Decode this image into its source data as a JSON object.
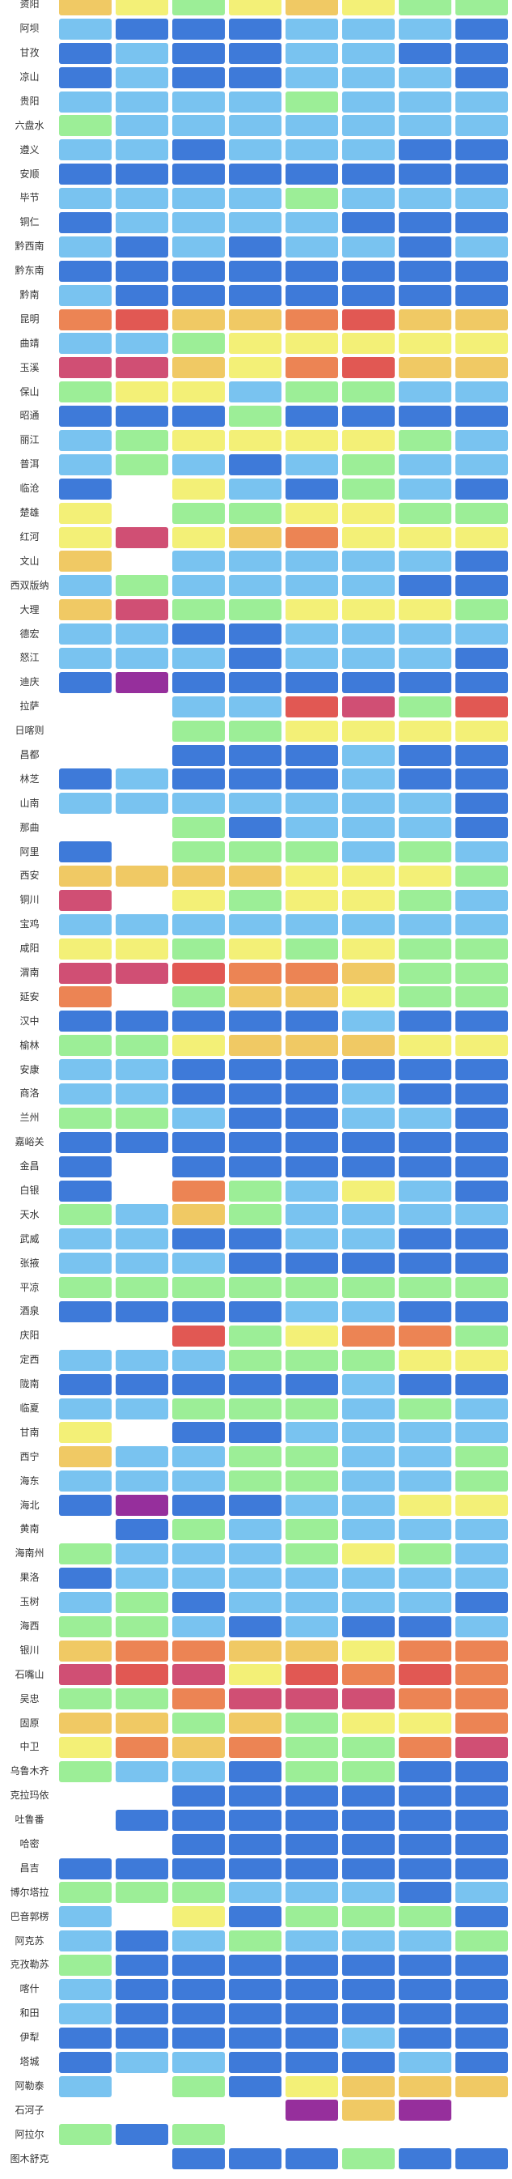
{
  "chart_data": {
    "type": "heatmap",
    "columns": 8,
    "column_labels_visible": false,
    "palette": {
      "b": "#3e7ad9",
      "l": "#79c3f0",
      "g": "#9cee97",
      "y": "#f3f077",
      "o": "#f0c964",
      "r": "#ec8454",
      "R": "#e15853",
      "c": "#d04f74",
      "p": "#962f9c",
      "w": "transparent"
    },
    "palette_legend": {
      "b": "blue",
      "l": "light-blue",
      "g": "green",
      "y": "yellow",
      "o": "gold",
      "r": "orange",
      "R": "red",
      "c": "crimson",
      "p": "purple",
      "w": "no-data"
    },
    "rows": [
      {
        "label": "资阳",
        "cells": [
          "o",
          "y",
          "g",
          "y",
          "o",
          "y",
          "g",
          "g"
        ]
      },
      {
        "label": "阿坝",
        "cells": [
          "l",
          "b",
          "b",
          "b",
          "l",
          "l",
          "l",
          "b"
        ]
      },
      {
        "label": "甘孜",
        "cells": [
          "b",
          "l",
          "b",
          "b",
          "l",
          "l",
          "b",
          "b"
        ]
      },
      {
        "label": "凉山",
        "cells": [
          "b",
          "l",
          "b",
          "b",
          "l",
          "l",
          "l",
          "b"
        ]
      },
      {
        "label": "贵阳",
        "cells": [
          "l",
          "l",
          "l",
          "l",
          "g",
          "l",
          "l",
          "l"
        ]
      },
      {
        "label": "六盘水",
        "cells": [
          "g",
          "l",
          "l",
          "l",
          "l",
          "l",
          "l",
          "l"
        ]
      },
      {
        "label": "遵义",
        "cells": [
          "l",
          "l",
          "b",
          "l",
          "l",
          "l",
          "b",
          "b"
        ]
      },
      {
        "label": "安顺",
        "cells": [
          "b",
          "b",
          "b",
          "b",
          "b",
          "b",
          "b",
          "b"
        ]
      },
      {
        "label": "毕节",
        "cells": [
          "l",
          "l",
          "l",
          "l",
          "g",
          "l",
          "l",
          "l"
        ]
      },
      {
        "label": "铜仁",
        "cells": [
          "b",
          "l",
          "l",
          "l",
          "l",
          "b",
          "b",
          "b"
        ]
      },
      {
        "label": "黔西南",
        "cells": [
          "l",
          "b",
          "l",
          "b",
          "l",
          "l",
          "b",
          "l"
        ]
      },
      {
        "label": "黔东南",
        "cells": [
          "b",
          "b",
          "b",
          "b",
          "b",
          "b",
          "b",
          "b"
        ]
      },
      {
        "label": "黔南",
        "cells": [
          "l",
          "b",
          "b",
          "b",
          "b",
          "b",
          "b",
          "b"
        ]
      },
      {
        "label": "昆明",
        "cells": [
          "r",
          "R",
          "o",
          "o",
          "r",
          "R",
          "o",
          "o"
        ]
      },
      {
        "label": "曲靖",
        "cells": [
          "l",
          "l",
          "g",
          "y",
          "y",
          "y",
          "y",
          "y"
        ]
      },
      {
        "label": "玉溪",
        "cells": [
          "c",
          "c",
          "o",
          "y",
          "r",
          "R",
          "o",
          "o"
        ]
      },
      {
        "label": "保山",
        "cells": [
          "g",
          "y",
          "y",
          "l",
          "g",
          "g",
          "l",
          "l"
        ]
      },
      {
        "label": "昭通",
        "cells": [
          "b",
          "b",
          "b",
          "g",
          "b",
          "b",
          "b",
          "b"
        ]
      },
      {
        "label": "丽江",
        "cells": [
          "l",
          "g",
          "y",
          "y",
          "y",
          "y",
          "g",
          "l"
        ]
      },
      {
        "label": "普洱",
        "cells": [
          "l",
          "g",
          "l",
          "b",
          "l",
          "g",
          "l",
          "l"
        ]
      },
      {
        "label": "临沧",
        "cells": [
          "b",
          "w",
          "y",
          "l",
          "b",
          "g",
          "l",
          "b"
        ]
      },
      {
        "label": "楚雄",
        "cells": [
          "y",
          "w",
          "g",
          "g",
          "y",
          "y",
          "g",
          "g"
        ]
      },
      {
        "label": "红河",
        "cells": [
          "y",
          "c",
          "y",
          "o",
          "r",
          "y",
          "y",
          "y"
        ]
      },
      {
        "label": "文山",
        "cells": [
          "o",
          "w",
          "l",
          "l",
          "l",
          "l",
          "l",
          "b"
        ]
      },
      {
        "label": "西双版纳",
        "cells": [
          "l",
          "g",
          "l",
          "l",
          "l",
          "l",
          "b",
          "b"
        ]
      },
      {
        "label": "大理",
        "cells": [
          "o",
          "c",
          "g",
          "g",
          "y",
          "y",
          "y",
          "g"
        ]
      },
      {
        "label": "德宏",
        "cells": [
          "l",
          "l",
          "b",
          "b",
          "l",
          "l",
          "l",
          "l"
        ]
      },
      {
        "label": "怒江",
        "cells": [
          "l",
          "l",
          "l",
          "b",
          "l",
          "l",
          "l",
          "b"
        ]
      },
      {
        "label": "迪庆",
        "cells": [
          "b",
          "p",
          "b",
          "b",
          "b",
          "b",
          "b",
          "b"
        ]
      },
      {
        "label": "拉萨",
        "cells": [
          "w",
          "w",
          "l",
          "l",
          "R",
          "c",
          "g",
          "R"
        ]
      },
      {
        "label": "日喀则",
        "cells": [
          "w",
          "w",
          "g",
          "g",
          "y",
          "y",
          "y",
          "y"
        ]
      },
      {
        "label": "昌都",
        "cells": [
          "w",
          "w",
          "b",
          "b",
          "b",
          "l",
          "b",
          "b"
        ]
      },
      {
        "label": "林芝",
        "cells": [
          "b",
          "l",
          "b",
          "b",
          "b",
          "l",
          "b",
          "b"
        ]
      },
      {
        "label": "山南",
        "cells": [
          "l",
          "l",
          "l",
          "l",
          "l",
          "l",
          "l",
          "b"
        ]
      },
      {
        "label": "那曲",
        "cells": [
          "w",
          "w",
          "g",
          "b",
          "l",
          "l",
          "l",
          "b"
        ]
      },
      {
        "label": "阿里",
        "cells": [
          "b",
          "w",
          "g",
          "g",
          "g",
          "l",
          "g",
          "l"
        ]
      },
      {
        "label": "西安",
        "cells": [
          "o",
          "o",
          "o",
          "o",
          "y",
          "y",
          "y",
          "g"
        ]
      },
      {
        "label": "铜川",
        "cells": [
          "c",
          "w",
          "y",
          "g",
          "y",
          "y",
          "g",
          "l"
        ]
      },
      {
        "label": "宝鸡",
        "cells": [
          "l",
          "l",
          "l",
          "l",
          "l",
          "l",
          "l",
          "l"
        ]
      },
      {
        "label": "咸阳",
        "cells": [
          "y",
          "y",
          "g",
          "y",
          "g",
          "y",
          "g",
          "g"
        ]
      },
      {
        "label": "渭南",
        "cells": [
          "c",
          "c",
          "R",
          "r",
          "r",
          "o",
          "g",
          "g"
        ]
      },
      {
        "label": "延安",
        "cells": [
          "r",
          "w",
          "g",
          "o",
          "o",
          "y",
          "g",
          "g"
        ]
      },
      {
        "label": "汉中",
        "cells": [
          "b",
          "b",
          "b",
          "b",
          "b",
          "l",
          "b",
          "b"
        ]
      },
      {
        "label": "榆林",
        "cells": [
          "g",
          "g",
          "y",
          "o",
          "o",
          "o",
          "y",
          "y"
        ]
      },
      {
        "label": "安康",
        "cells": [
          "l",
          "l",
          "b",
          "b",
          "b",
          "b",
          "b",
          "b"
        ]
      },
      {
        "label": "商洛",
        "cells": [
          "l",
          "l",
          "b",
          "b",
          "b",
          "l",
          "b",
          "b"
        ]
      },
      {
        "label": "兰州",
        "cells": [
          "g",
          "g",
          "l",
          "b",
          "b",
          "l",
          "l",
          "b"
        ]
      },
      {
        "label": "嘉峪关",
        "cells": [
          "b",
          "b",
          "b",
          "b",
          "b",
          "b",
          "b",
          "b"
        ]
      },
      {
        "label": "金昌",
        "cells": [
          "b",
          "w",
          "b",
          "b",
          "b",
          "b",
          "b",
          "b"
        ]
      },
      {
        "label": "白银",
        "cells": [
          "b",
          "w",
          "r",
          "g",
          "l",
          "y",
          "l",
          "b"
        ]
      },
      {
        "label": "天水",
        "cells": [
          "g",
          "l",
          "o",
          "g",
          "l",
          "l",
          "l",
          "l"
        ]
      },
      {
        "label": "武威",
        "cells": [
          "l",
          "l",
          "b",
          "b",
          "l",
          "l",
          "b",
          "b"
        ]
      },
      {
        "label": "张掖",
        "cells": [
          "l",
          "l",
          "l",
          "b",
          "b",
          "b",
          "b",
          "b"
        ]
      },
      {
        "label": "平凉",
        "cells": [
          "g",
          "g",
          "g",
          "g",
          "g",
          "g",
          "g",
          "g"
        ]
      },
      {
        "label": "酒泉",
        "cells": [
          "b",
          "b",
          "b",
          "b",
          "l",
          "l",
          "b",
          "b"
        ]
      },
      {
        "label": "庆阳",
        "cells": [
          "w",
          "w",
          "R",
          "g",
          "y",
          "r",
          "r",
          "g"
        ]
      },
      {
        "label": "定西",
        "cells": [
          "l",
          "l",
          "l",
          "g",
          "g",
          "g",
          "y",
          "y"
        ]
      },
      {
        "label": "陇南",
        "cells": [
          "b",
          "b",
          "b",
          "b",
          "b",
          "l",
          "b",
          "b"
        ]
      },
      {
        "label": "临夏",
        "cells": [
          "l",
          "l",
          "g",
          "g",
          "g",
          "l",
          "g",
          "l"
        ]
      },
      {
        "label": "甘南",
        "cells": [
          "y",
          "w",
          "b",
          "b",
          "l",
          "l",
          "l",
          "l"
        ]
      },
      {
        "label": "西宁",
        "cells": [
          "o",
          "l",
          "l",
          "g",
          "g",
          "l",
          "l",
          "g"
        ]
      },
      {
        "label": "海东",
        "cells": [
          "l",
          "l",
          "l",
          "g",
          "g",
          "l",
          "l",
          "g"
        ]
      },
      {
        "label": "海北",
        "cells": [
          "b",
          "p",
          "b",
          "b",
          "l",
          "l",
          "y",
          "y"
        ]
      },
      {
        "label": "黄南",
        "cells": [
          "w",
          "b",
          "g",
          "l",
          "g",
          "l",
          "l",
          "l"
        ]
      },
      {
        "label": "海南州",
        "cells": [
          "g",
          "l",
          "l",
          "l",
          "g",
          "y",
          "g",
          "l"
        ]
      },
      {
        "label": "果洛",
        "cells": [
          "b",
          "l",
          "l",
          "l",
          "l",
          "l",
          "l",
          "l"
        ]
      },
      {
        "label": "玉树",
        "cells": [
          "l",
          "g",
          "b",
          "l",
          "l",
          "l",
          "l",
          "b"
        ]
      },
      {
        "label": "海西",
        "cells": [
          "g",
          "g",
          "l",
          "b",
          "l",
          "b",
          "b",
          "l"
        ]
      },
      {
        "label": "银川",
        "cells": [
          "o",
          "r",
          "r",
          "o",
          "o",
          "y",
          "r",
          "r"
        ]
      },
      {
        "label": "石嘴山",
        "cells": [
          "c",
          "R",
          "c",
          "y",
          "R",
          "r",
          "R",
          "r"
        ]
      },
      {
        "label": "吴忠",
        "cells": [
          "g",
          "g",
          "r",
          "c",
          "c",
          "c",
          "r",
          "r"
        ]
      },
      {
        "label": "固原",
        "cells": [
          "o",
          "o",
          "g",
          "o",
          "g",
          "y",
          "y",
          "r"
        ]
      },
      {
        "label": "中卫",
        "cells": [
          "y",
          "r",
          "o",
          "r",
          "g",
          "g",
          "r",
          "c"
        ]
      },
      {
        "label": "乌鲁木齐",
        "cells": [
          "g",
          "l",
          "l",
          "b",
          "g",
          "g",
          "b",
          "b"
        ]
      },
      {
        "label": "克拉玛依",
        "cells": [
          "w",
          "w",
          "b",
          "b",
          "b",
          "b",
          "b",
          "b"
        ]
      },
      {
        "label": "吐鲁番",
        "cells": [
          "w",
          "b",
          "b",
          "b",
          "b",
          "b",
          "b",
          "b"
        ]
      },
      {
        "label": "哈密",
        "cells": [
          "w",
          "w",
          "b",
          "b",
          "b",
          "b",
          "b",
          "b"
        ]
      },
      {
        "label": "昌吉",
        "cells": [
          "b",
          "b",
          "b",
          "b",
          "b",
          "b",
          "b",
          "b"
        ]
      },
      {
        "label": "博尔塔拉",
        "cells": [
          "g",
          "g",
          "g",
          "l",
          "l",
          "l",
          "b",
          "l"
        ]
      },
      {
        "label": "巴音郭楞",
        "cells": [
          "l",
          "w",
          "y",
          "b",
          "g",
          "g",
          "g",
          "b"
        ]
      },
      {
        "label": "阿克苏",
        "cells": [
          "l",
          "b",
          "l",
          "g",
          "l",
          "l",
          "l",
          "g"
        ]
      },
      {
        "label": "克孜勒苏",
        "cells": [
          "g",
          "b",
          "b",
          "b",
          "b",
          "b",
          "b",
          "b"
        ]
      },
      {
        "label": "喀什",
        "cells": [
          "l",
          "b",
          "b",
          "b",
          "b",
          "b",
          "b",
          "b"
        ]
      },
      {
        "label": "和田",
        "cells": [
          "l",
          "b",
          "b",
          "b",
          "b",
          "b",
          "b",
          "b"
        ]
      },
      {
        "label": "伊犁",
        "cells": [
          "b",
          "b",
          "b",
          "b",
          "b",
          "l",
          "b",
          "b"
        ]
      },
      {
        "label": "塔城",
        "cells": [
          "b",
          "l",
          "l",
          "b",
          "b",
          "b",
          "l",
          "b"
        ]
      },
      {
        "label": "阿勒泰",
        "cells": [
          "l",
          "w",
          "g",
          "b",
          "y",
          "o",
          "o",
          "o"
        ]
      },
      {
        "label": "石河子",
        "cells": [
          "w",
          "w",
          "w",
          "w",
          "p",
          "o",
          "p",
          "w"
        ]
      },
      {
        "label": "阿拉尔",
        "cells": [
          "g",
          "b",
          "g",
          "w",
          "w",
          "w",
          "w",
          "w"
        ]
      },
      {
        "label": "图木舒克",
        "cells": [
          "w",
          "w",
          "b",
          "b",
          "b",
          "g",
          "b",
          "b"
        ]
      }
    ]
  }
}
